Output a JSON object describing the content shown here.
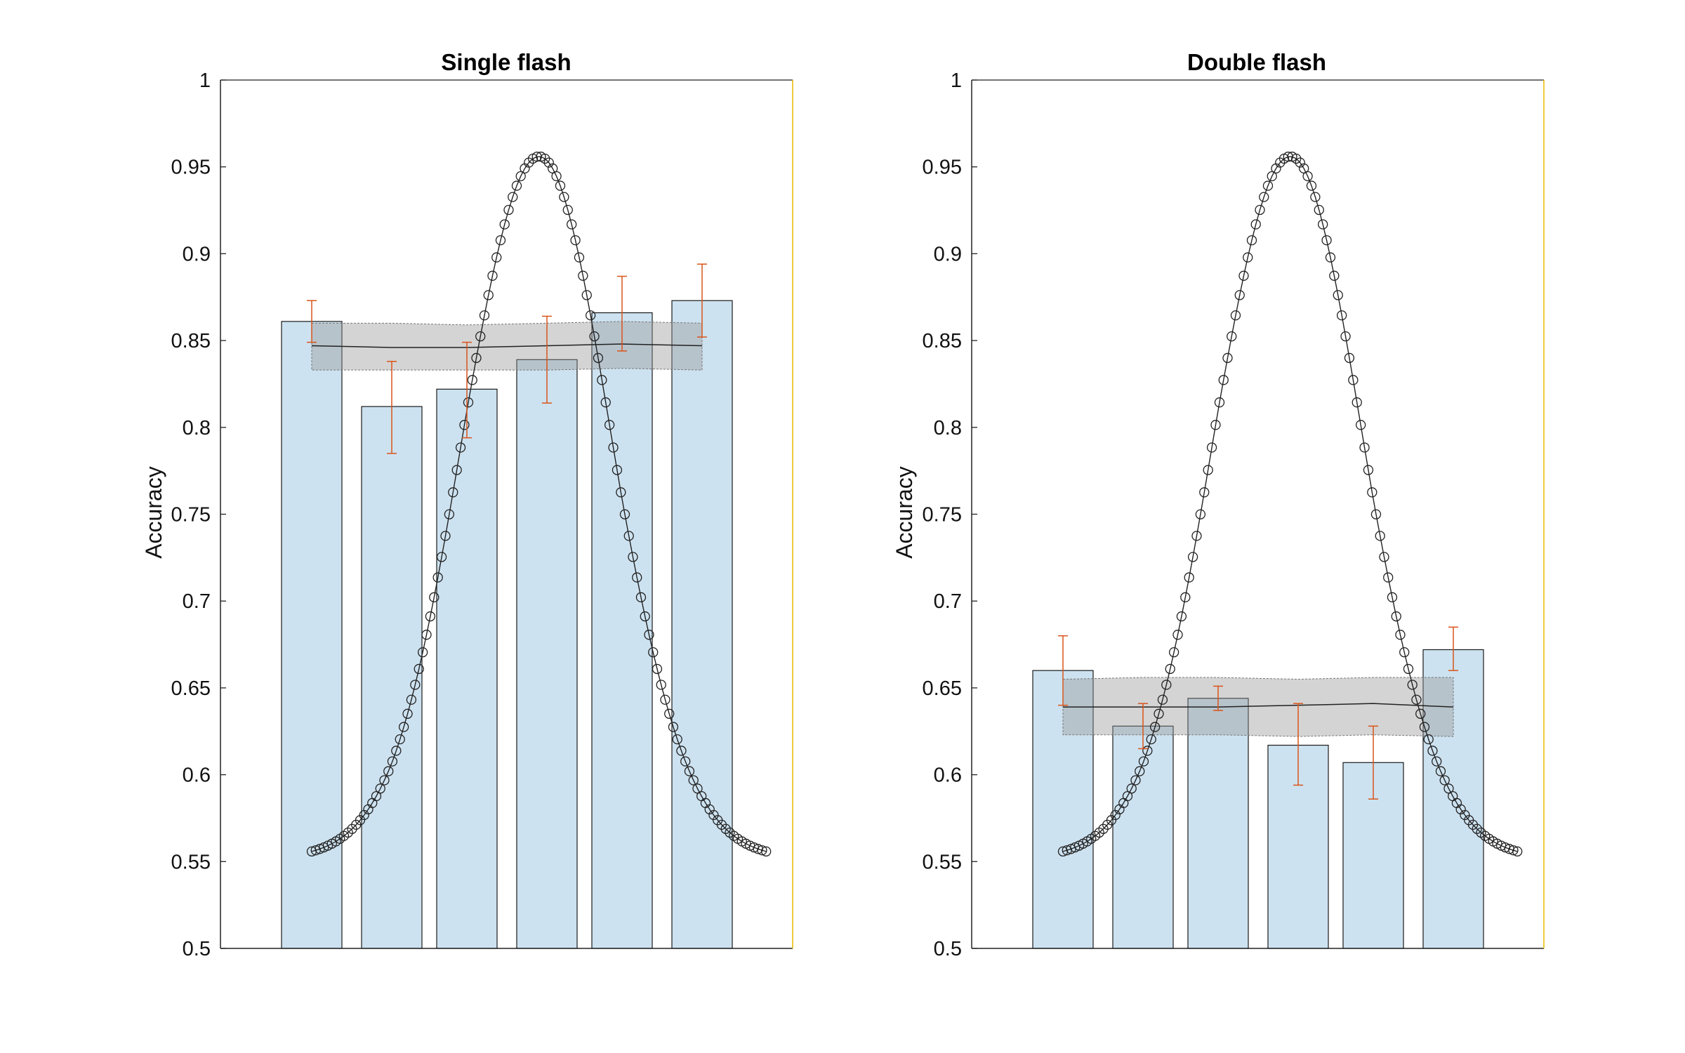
{
  "chart_data": [
    {
      "type": "bar",
      "title": "Single flash",
      "xlabel": "",
      "ylabel": "Accuracy",
      "ylim": [
        0.5,
        1
      ],
      "yticks": [
        "0.5",
        "0.55",
        "0.6",
        "0.65",
        "0.7",
        "0.75",
        "0.8",
        "0.85",
        "0.9",
        "0.95",
        "1"
      ],
      "bar_color": "#cde2f0",
      "errorbar_color": "#d9541a",
      "bars": [
        {
          "x": 1,
          "value": 0.861,
          "err_low": 0.849,
          "err_high": 0.873
        },
        {
          "x": 2,
          "value": 0.812,
          "err_low": 0.785,
          "err_high": 0.838
        },
        {
          "x": 3,
          "value": 0.822,
          "err_low": 0.794,
          "err_high": 0.849
        },
        {
          "x": 4,
          "value": 0.839,
          "err_low": 0.814,
          "err_high": 0.864
        },
        {
          "x": 5,
          "value": 0.866,
          "err_low": 0.844,
          "err_high": 0.887
        },
        {
          "x": 6,
          "value": 0.873,
          "err_low": 0.852,
          "err_high": 0.894
        }
      ],
      "null_band": {
        "x": [
          1,
          2,
          3,
          4,
          5,
          6
        ],
        "mean": [
          0.847,
          0.846,
          0.846,
          0.847,
          0.848,
          0.847
        ],
        "lower": [
          0.833,
          0.833,
          0.833,
          0.833,
          0.834,
          0.833
        ],
        "upper": [
          0.86,
          0.86,
          0.859,
          0.86,
          0.861,
          0.86
        ]
      },
      "gaussian_curve": {
        "x_start": 1,
        "x_end": 6.8,
        "base": 0.552,
        "peak": 0.956,
        "center": 3.9,
        "sd": 0.95,
        "points": 116
      }
    },
    {
      "type": "bar",
      "title": "Double flash",
      "xlabel": "",
      "ylabel": "Accuracy",
      "ylim": [
        0.5,
        1
      ],
      "yticks": [
        "0.5",
        "0.55",
        "0.6",
        "0.65",
        "0.7",
        "0.75",
        "0.8",
        "0.85",
        "0.9",
        "0.95",
        "1"
      ],
      "bar_color": "#cde2f0",
      "errorbar_color": "#d9541a",
      "bars": [
        {
          "x": 1,
          "value": 0.66,
          "err_low": 0.64,
          "err_high": 0.68
        },
        {
          "x": 2,
          "value": 0.628,
          "err_low": 0.615,
          "err_high": 0.641
        },
        {
          "x": 3,
          "value": 0.644,
          "err_low": 0.637,
          "err_high": 0.651
        },
        {
          "x": 4,
          "value": 0.617,
          "err_low": 0.594,
          "err_high": 0.641
        },
        {
          "x": 5,
          "value": 0.607,
          "err_low": 0.586,
          "err_high": 0.628
        },
        {
          "x": 6,
          "value": 0.672,
          "err_low": 0.66,
          "err_high": 0.685
        }
      ],
      "null_band": {
        "x": [
          1,
          2,
          3,
          4,
          5,
          6
        ],
        "mean": [
          0.639,
          0.639,
          0.639,
          0.64,
          0.641,
          0.639
        ],
        "lower": [
          0.623,
          0.623,
          0.623,
          0.622,
          0.623,
          0.622
        ],
        "upper": [
          0.655,
          0.656,
          0.656,
          0.655,
          0.656,
          0.656
        ]
      },
      "gaussian_curve": {
        "x_start": 1,
        "x_end": 6.8,
        "base": 0.552,
        "peak": 0.956,
        "center": 3.9,
        "sd": 0.95,
        "points": 116
      }
    }
  ]
}
